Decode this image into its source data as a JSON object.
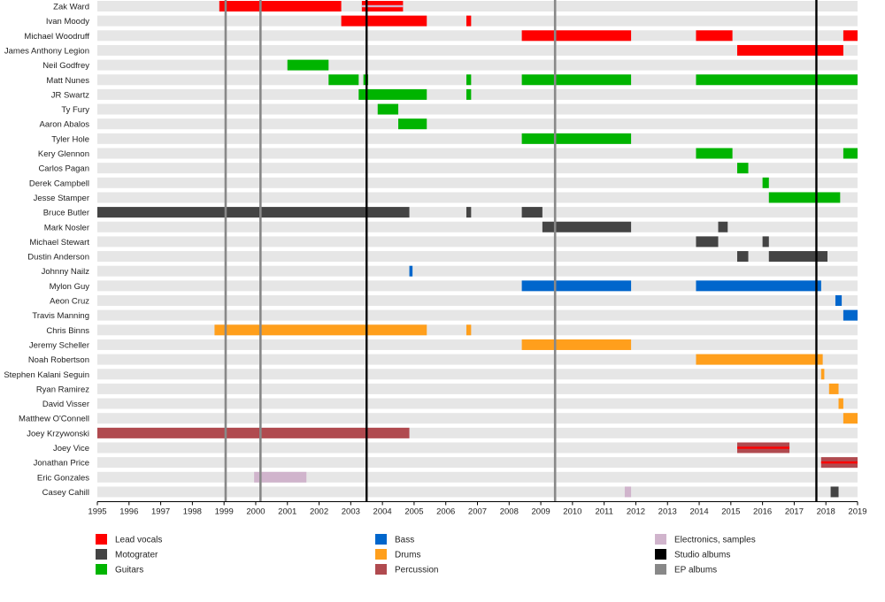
{
  "chart_data": {
    "type": "timeline",
    "title": "",
    "xlabel": "",
    "ylabel": "",
    "xlim": [
      1995,
      2019
    ],
    "x_ticks": [
      "1995",
      "1996",
      "1997",
      "1998",
      "1999",
      "2000",
      "2001",
      "2002",
      "2003",
      "2004",
      "2005",
      "2006",
      "2007",
      "2008",
      "2009",
      "2010",
      "2011",
      "2012",
      "2013",
      "2014",
      "2015",
      "2016",
      "2017",
      "2018",
      "2019"
    ],
    "colors": {
      "lead_vocals": "#ff0000",
      "motograter": "#444444",
      "guitars": "#00b400",
      "bass": "#0066cc",
      "drums": "#ff9f1c",
      "percussion": "#b04a4f",
      "electronics": "#d0b4cc",
      "studio": "#000000",
      "ep": "#888888",
      "row_bg": "#e6e6e6"
    },
    "legend": [
      {
        "key": "lead_vocals",
        "label": "Lead vocals"
      },
      {
        "key": "motograter",
        "label": "Motograter"
      },
      {
        "key": "guitars",
        "label": "Guitars"
      },
      {
        "key": "bass",
        "label": "Bass"
      },
      {
        "key": "drums",
        "label": "Drums"
      },
      {
        "key": "percussion",
        "label": "Percussion"
      },
      {
        "key": "electronics",
        "label": "Electronics, samples"
      },
      {
        "key": "studio",
        "label": "Studio albums"
      },
      {
        "key": "ep",
        "label": "EP albums"
      }
    ],
    "album_lines": [
      {
        "type": "ep",
        "year": 1999.05
      },
      {
        "type": "ep",
        "year": 2000.15
      },
      {
        "type": "studio",
        "year": 2003.5
      },
      {
        "type": "ep",
        "year": 2009.45
      },
      {
        "type": "studio",
        "year": 2017.7
      }
    ],
    "members": [
      {
        "name": "Zak Ward",
        "bars": [
          {
            "role": "lead_vocals",
            "start": 1998.85,
            "end": 2002.7
          },
          {
            "role": "lead_vocals",
            "start": 2003.35,
            "end": 2004.65,
            "stripe": "electronics"
          }
        ]
      },
      {
        "name": "Ivan Moody",
        "bars": [
          {
            "role": "lead_vocals",
            "start": 2002.7,
            "end": 2005.4
          },
          {
            "role": "lead_vocals",
            "start": 2006.65,
            "end": 2006.8
          }
        ]
      },
      {
        "name": "Michael Woodruff",
        "bars": [
          {
            "role": "lead_vocals",
            "start": 2008.4,
            "end": 2011.85
          },
          {
            "role": "lead_vocals",
            "start": 2013.9,
            "end": 2015.05
          },
          {
            "role": "lead_vocals",
            "start": 2018.55,
            "end": 2019.0
          }
        ]
      },
      {
        "name": "James Anthony Legion",
        "bars": [
          {
            "role": "lead_vocals",
            "start": 2015.2,
            "end": 2018.55
          }
        ]
      },
      {
        "name": "Neil Godfrey",
        "bars": [
          {
            "role": "guitars",
            "start": 2001.0,
            "end": 2002.3
          }
        ]
      },
      {
        "name": "Matt Nunes",
        "bars": [
          {
            "role": "guitars",
            "start": 2002.3,
            "end": 2003.25
          },
          {
            "role": "guitars",
            "start": 2003.4,
            "end": 2003.55
          },
          {
            "role": "guitars",
            "start": 2006.65,
            "end": 2006.8
          },
          {
            "role": "guitars",
            "start": 2008.4,
            "end": 2011.85
          },
          {
            "role": "guitars",
            "start": 2013.9,
            "end": 2019.0
          }
        ]
      },
      {
        "name": "JR Swartz",
        "bars": [
          {
            "role": "guitars",
            "start": 2003.25,
            "end": 2005.4
          },
          {
            "role": "guitars",
            "start": 2006.65,
            "end": 2006.8
          }
        ]
      },
      {
        "name": "Ty Fury",
        "bars": [
          {
            "role": "guitars",
            "start": 2003.85,
            "end": 2004.5
          }
        ]
      },
      {
        "name": "Aaron Abalos",
        "bars": [
          {
            "role": "guitars",
            "start": 2004.5,
            "end": 2005.4
          }
        ]
      },
      {
        "name": "Tyler Hole",
        "bars": [
          {
            "role": "guitars",
            "start": 2008.4,
            "end": 2011.85
          }
        ]
      },
      {
        "name": "Kery Glennon",
        "bars": [
          {
            "role": "guitars",
            "start": 2013.9,
            "end": 2015.05
          },
          {
            "role": "guitars",
            "start": 2018.55,
            "end": 2019.0
          }
        ]
      },
      {
        "name": "Carlos Pagan",
        "bars": [
          {
            "role": "guitars",
            "start": 2015.2,
            "end": 2015.55
          }
        ]
      },
      {
        "name": "Derek Campbell",
        "bars": [
          {
            "role": "guitars",
            "start": 2016.0,
            "end": 2016.2
          }
        ]
      },
      {
        "name": "Jesse Stamper",
        "bars": [
          {
            "role": "guitars",
            "start": 2016.2,
            "end": 2018.45
          }
        ]
      },
      {
        "name": "Bruce Butler",
        "bars": [
          {
            "role": "motograter",
            "start": 1995.0,
            "end": 2004.85
          },
          {
            "role": "motograter",
            "start": 2006.65,
            "end": 2006.8
          },
          {
            "role": "motograter",
            "start": 2008.4,
            "end": 2009.05
          }
        ]
      },
      {
        "name": "Mark Nosler",
        "bars": [
          {
            "role": "motograter",
            "start": 2009.05,
            "end": 2011.85
          },
          {
            "role": "motograter",
            "start": 2014.6,
            "end": 2014.9
          }
        ]
      },
      {
        "name": "Michael Stewart",
        "bars": [
          {
            "role": "motograter",
            "start": 2013.9,
            "end": 2014.6
          },
          {
            "role": "motograter",
            "start": 2016.0,
            "end": 2016.2
          }
        ]
      },
      {
        "name": "Dustin Anderson",
        "bars": [
          {
            "role": "motograter",
            "start": 2015.2,
            "end": 2015.55
          },
          {
            "role": "motograter",
            "start": 2016.2,
            "end": 2018.05
          }
        ]
      },
      {
        "name": "Johnny Nailz",
        "bars": [
          {
            "role": "bass",
            "start": 2004.85,
            "end": 2004.95
          }
        ]
      },
      {
        "name": "Mylon Guy",
        "bars": [
          {
            "role": "bass",
            "start": 2008.4,
            "end": 2011.85
          },
          {
            "role": "bass",
            "start": 2013.9,
            "end": 2017.85
          }
        ]
      },
      {
        "name": "Aeon Cruz",
        "bars": [
          {
            "role": "bass",
            "start": 2018.3,
            "end": 2018.5
          }
        ]
      },
      {
        "name": "Travis Manning",
        "bars": [
          {
            "role": "bass",
            "start": 2018.55,
            "end": 2019.0
          }
        ]
      },
      {
        "name": "Chris Binns",
        "bars": [
          {
            "role": "drums",
            "start": 1998.7,
            "end": 2005.4
          },
          {
            "role": "drums",
            "start": 2006.65,
            "end": 2006.8
          }
        ]
      },
      {
        "name": "Jeremy Scheller",
        "bars": [
          {
            "role": "drums",
            "start": 2008.4,
            "end": 2011.85
          }
        ]
      },
      {
        "name": "Noah Robertson",
        "bars": [
          {
            "role": "drums",
            "start": 2013.9,
            "end": 2017.9
          }
        ]
      },
      {
        "name": "Stephen Kalani Seguin",
        "bars": [
          {
            "role": "drums",
            "start": 2017.85,
            "end": 2017.95
          }
        ]
      },
      {
        "name": "Ryan Ramirez",
        "bars": [
          {
            "role": "drums",
            "start": 2018.1,
            "end": 2018.4
          }
        ]
      },
      {
        "name": "David Visser",
        "bars": [
          {
            "role": "drums",
            "start": 2018.4,
            "end": 2018.55
          }
        ]
      },
      {
        "name": "Matthew O'Connell",
        "bars": [
          {
            "role": "drums",
            "start": 2018.55,
            "end": 2019.0
          }
        ]
      },
      {
        "name": "Joey Krzywonski",
        "bars": [
          {
            "role": "percussion",
            "start": 1995.0,
            "end": 2004.85
          }
        ]
      },
      {
        "name": "Joey Vice",
        "bars": [
          {
            "role": "percussion",
            "start": 2015.2,
            "end": 2016.85,
            "stripe": "lead_vocals"
          }
        ]
      },
      {
        "name": "Jonathan Price",
        "bars": [
          {
            "role": "percussion",
            "start": 2017.85,
            "end": 2019.0,
            "stripe": "lead_vocals"
          }
        ]
      },
      {
        "name": "Eric Gonzales",
        "bars": [
          {
            "role": "electronics",
            "start": 1999.95,
            "end": 2001.6
          }
        ]
      },
      {
        "name": "Casey Cahill",
        "bars": [
          {
            "role": "electronics",
            "start": 2011.65,
            "end": 2011.85
          },
          {
            "role": "motograter",
            "start": 2018.15,
            "end": 2018.4
          }
        ]
      }
    ]
  }
}
